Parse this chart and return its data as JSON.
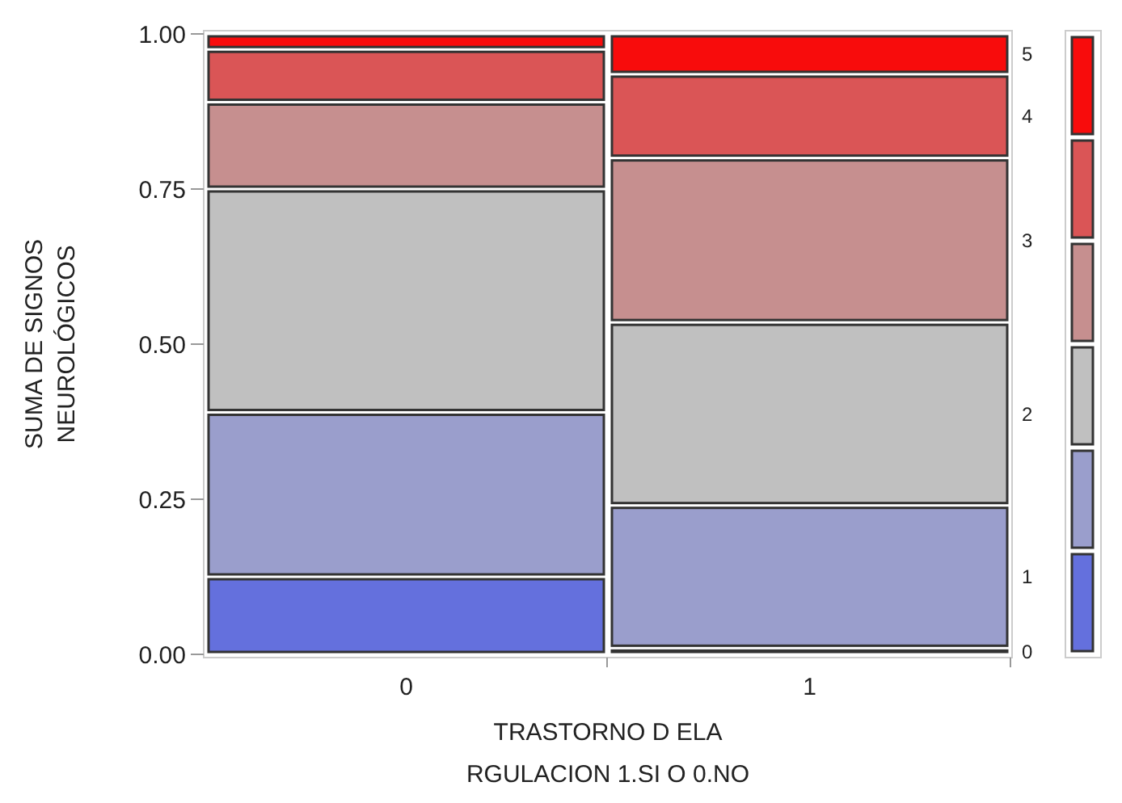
{
  "chart_data": {
    "type": "bar",
    "stacked": true,
    "xlabel": "TRASTORNO D ELA\nRGULACION 1.SI O 0.NO",
    "ylabel": "SUMA DE SIGNOS\nNEUROLÓGICOS",
    "categories": [
      "0",
      "1"
    ],
    "series": [
      {
        "name": "0",
        "color": "#6470dd",
        "values": [
          0.125,
          0.01
        ]
      },
      {
        "name": "1",
        "color": "#9a9ecc",
        "values": [
          0.265,
          0.23
        ]
      },
      {
        "name": "2",
        "color": "#c0c0c0",
        "values": [
          0.36,
          0.295
        ]
      },
      {
        "name": "3",
        "color": "#c68f8f",
        "values": [
          0.14,
          0.265
        ]
      },
      {
        "name": "4",
        "color": "#da5556",
        "values": [
          0.085,
          0.135
        ]
      },
      {
        "name": "5",
        "color": "#f80c0c",
        "values": [
          0.025,
          0.065
        ]
      }
    ],
    "ylim": [
      0,
      1
    ],
    "yticks": [
      {
        "value": 0,
        "label": "0.00"
      },
      {
        "value": 0.25,
        "label": "0.25"
      },
      {
        "value": 0.5,
        "label": "0.50"
      },
      {
        "value": 0.75,
        "label": "0.75"
      },
      {
        "value": 1,
        "label": "1.00"
      }
    ],
    "legend": "right"
  }
}
